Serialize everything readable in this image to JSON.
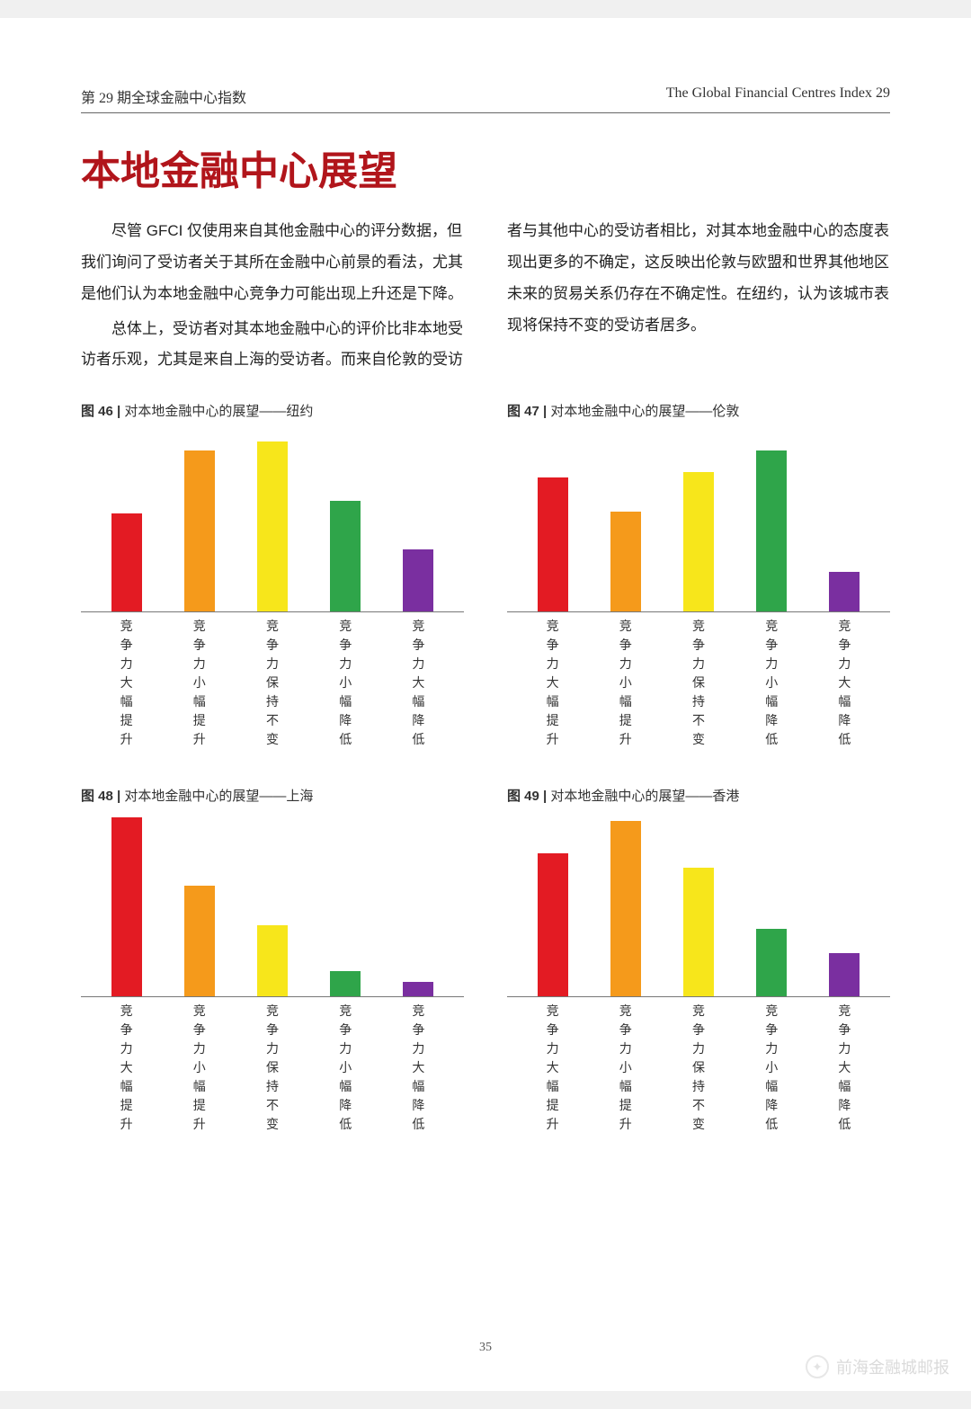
{
  "header": {
    "left": "第 29 期全球金融中心指数",
    "right": "The Global Financial Centres Index 29"
  },
  "title": {
    "text": "本地金融中心展望",
    "color": "#b1151b"
  },
  "paragraphs": [
    "尽管 GFCI 仅使用来自其他金融中心的评分数据，但我们询问了受访者关于其所在金融中心前景的看法，尤其是他们认为本地金融中心竞争力可能出现上升还是下降。",
    "总体上，受访者对其本地金融中心的评价比非本地受访者乐观，尤其是来自上海的受访者。而来自伦敦的受访者与其他中心的受访者相比，对其本地金融中心的态度表现出更多的不确定，这反映出伦敦与欧盟和世界其他地区未来的贸易关系仍存在不确定性。在纽约，认为该城市表现将保持不变的受访者居多。"
  ],
  "categories": [
    "竞争力大幅提升",
    "竞争力小幅提升",
    "竞争力保持不变",
    "竞争力小幅降低",
    "竞争力大幅降低"
  ],
  "bar_colors": [
    "#e31b23",
    "#f59a1b",
    "#f7e61b",
    "#2fa54a",
    "#7a2fa0"
  ],
  "charts": [
    {
      "key": "chart46",
      "fignum": "图 46",
      "title": "对本地金融中心的展望——纽约",
      "values": [
        55,
        90,
        95,
        62,
        35
      ],
      "ymax": 100
    },
    {
      "key": "chart47",
      "fignum": "图 47",
      "title": "对本地金融中心的展望——伦敦",
      "values": [
        75,
        56,
        78,
        90,
        22
      ],
      "ymax": 100
    },
    {
      "key": "chart48",
      "fignum": "图 48",
      "title": "对本地金融中心的展望——上海",
      "values": [
        100,
        62,
        40,
        14,
        8
      ],
      "ymax": 100
    },
    {
      "key": "chart49",
      "fignum": "图 49",
      "title": "对本地金融中心的展望——香港",
      "values": [
        80,
        98,
        72,
        38,
        24
      ],
      "ymax": 100
    }
  ],
  "page_number": "35",
  "watermark": "前海金融城邮报"
}
